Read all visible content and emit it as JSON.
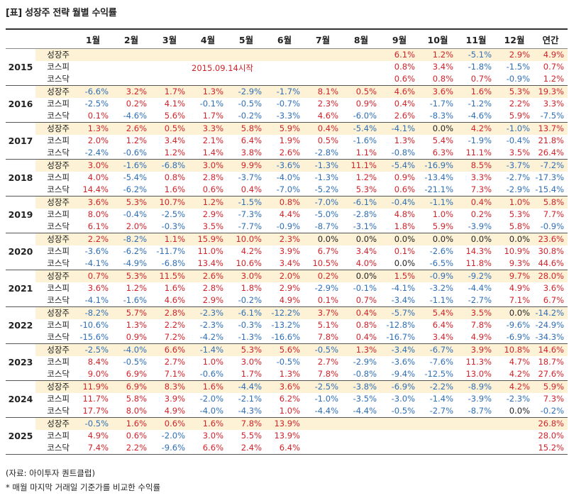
{
  "title": "[표] 성장주 전략 월별 수익률",
  "header": [
    "1월",
    "2월",
    "3월",
    "4월",
    "5월",
    "6월",
    "7월",
    "8월",
    "9월",
    "10월",
    "11월",
    "12월",
    "연간"
  ],
  "annotation": "2015.09.14시작",
  "source": "(자료: 아이투자 퀀트클럽)",
  "footnote": "* 매월 마지막 거래일 기준가를 비교한 수익률",
  "colors": {
    "positive": "#d2232a",
    "negative": "#2f6fb7",
    "growth_row_bg": "#fdf2d6"
  },
  "years": [
    {
      "year": "2015",
      "rows": [
        {
          "name": "성장주",
          "values": [
            "",
            "",
            "",
            "",
            "",
            "",
            "",
            "",
            "6.1%",
            "1.2%",
            "-5.1%",
            "2.9%",
            "4.9%"
          ]
        },
        {
          "name": "코스피",
          "values": [
            "",
            "",
            "",
            "",
            "",
            "",
            "",
            "",
            "0.8%",
            "3.4%",
            "-1.8%",
            "-1.5%",
            "0.7%"
          ]
        },
        {
          "name": "코스닥",
          "values": [
            "",
            "",
            "",
            "",
            "",
            "",
            "",
            "",
            "0.6%",
            "0.8%",
            "0.7%",
            "-0.9%",
            "1.2%"
          ]
        }
      ]
    },
    {
      "year": "2016",
      "rows": [
        {
          "name": "성장주",
          "values": [
            "-6.6%",
            "3.2%",
            "1.7%",
            "1.3%",
            "-2.9%",
            "-1.7%",
            "8.1%",
            "0.5%",
            "4.6%",
            "3.6%",
            "1.6%",
            "5.3%",
            "19.3%"
          ]
        },
        {
          "name": "코스피",
          "values": [
            "-2.5%",
            "0.2%",
            "4.1%",
            "-0.1%",
            "-0.5%",
            "-0.7%",
            "2.3%",
            "0.9%",
            "0.4%",
            "-1.7%",
            "-1.2%",
            "2.2%",
            "3.3%"
          ]
        },
        {
          "name": "코스닥",
          "values": [
            "0.1%",
            "-4.6%",
            "5.6%",
            "1.7%",
            "-0.2%",
            "-3.3%",
            "4.6%",
            "-6.0%",
            "2.6%",
            "-8.3%",
            "-4.6%",
            "5.9%",
            "-7.5%"
          ]
        }
      ]
    },
    {
      "year": "2017",
      "rows": [
        {
          "name": "성장주",
          "values": [
            "1.3%",
            "2.6%",
            "0.5%",
            "3.3%",
            "5.8%",
            "5.9%",
            "0.4%",
            "-5.4%",
            "-4.1%",
            "0.0%",
            "4.2%",
            "-1.0%",
            "13.7%"
          ]
        },
        {
          "name": "코스피",
          "values": [
            "2.0%",
            "1.2%",
            "3.4%",
            "2.1%",
            "6.4%",
            "1.9%",
            "0.5%",
            "-1.6%",
            "1.3%",
            "5.4%",
            "-1.9%",
            "-0.4%",
            "21.8%"
          ]
        },
        {
          "name": "코스닥",
          "values": [
            "-2.4%",
            "-0.6%",
            "1.2%",
            "1.4%",
            "3.8%",
            "2.6%",
            "-2.8%",
            "1.1%",
            "-0.8%",
            "6.3%",
            "11.1%",
            "3.5%",
            "26.4%"
          ]
        }
      ]
    },
    {
      "year": "2018",
      "rows": [
        {
          "name": "성장주",
          "values": [
            "3.0%",
            "-1.6%",
            "-6.8%",
            "3.0%",
            "9.9%",
            "-3.6%",
            "-1.3%",
            "11.1%",
            "-5.4%",
            "-16.9%",
            "8.5%",
            "-3.7%",
            "-7.2%"
          ]
        },
        {
          "name": "코스피",
          "values": [
            "4.0%",
            "-5.4%",
            "0.8%",
            "2.8%",
            "-3.7%",
            "-4.0%",
            "-1.3%",
            "1.2%",
            "0.9%",
            "-13.4%",
            "3.3%",
            "-2.7%",
            "-17.3%"
          ]
        },
        {
          "name": "코스닥",
          "values": [
            "14.4%",
            "-6.2%",
            "1.6%",
            "0.6%",
            "0.4%",
            "-7.0%",
            "-5.2%",
            "5.3%",
            "0.6%",
            "-21.1%",
            "7.3%",
            "-2.9%",
            "-15.4%"
          ]
        }
      ]
    },
    {
      "year": "2019",
      "rows": [
        {
          "name": "성장주",
          "values": [
            "3.6%",
            "5.3%",
            "10.7%",
            "1.2%",
            "-1.5%",
            "0.8%",
            "-7.0%",
            "-6.1%",
            "-0.4%",
            "-1.1%",
            "0.4%",
            "1.0%",
            "5.8%"
          ]
        },
        {
          "name": "코스피",
          "values": [
            "8.0%",
            "-0.4%",
            "-2.5%",
            "2.9%",
            "-7.3%",
            "4.4%",
            "-5.0%",
            "-2.8%",
            "4.8%",
            "1.0%",
            "0.2%",
            "5.3%",
            "7.7%"
          ]
        },
        {
          "name": "코스닥",
          "values": [
            "6.1%",
            "2.0%",
            "-0.3%",
            "3.5%",
            "-7.7%",
            "-0.9%",
            "-8.7%",
            "-3.1%",
            "1.8%",
            "5.9%",
            "-3.9%",
            "5.8%",
            "-0.9%"
          ]
        }
      ]
    },
    {
      "year": "2020",
      "rows": [
        {
          "name": "성장주",
          "values": [
            "2.2%",
            "-8.2%",
            "1.1%",
            "15.9%",
            "10.0%",
            "2.3%",
            "0.0%",
            "0.0%",
            "0.0%",
            "0.0%",
            "0.0%",
            "0.0%",
            "23.6%"
          ]
        },
        {
          "name": "코스피",
          "values": [
            "-3.6%",
            "-6.2%",
            "-11.7%",
            "11.0%",
            "4.2%",
            "3.9%",
            "6.7%",
            "3.4%",
            "0.1%",
            "-2.6%",
            "14.3%",
            "10.9%",
            "30.8%"
          ]
        },
        {
          "name": "코스닥",
          "values": [
            "-4.1%",
            "-4.9%",
            "-6.8%",
            "13.4%",
            "10.6%",
            "3.4%",
            "10.5%",
            "4.0%",
            "0.0%",
            "-6.5%",
            "11.8%",
            "9.3%",
            "44.6%"
          ]
        }
      ]
    },
    {
      "year": "2021",
      "rows": [
        {
          "name": "성장주",
          "values": [
            "0.7%",
            "5.3%",
            "11.5%",
            "2.6%",
            "3.0%",
            "2.0%",
            "0.2%",
            "0.0%",
            "1.5%",
            "-0.9%",
            "-9.2%",
            "9.7%",
            "28.0%"
          ]
        },
        {
          "name": "코스피",
          "values": [
            "3.6%",
            "1.2%",
            "1.6%",
            "2.8%",
            "1.8%",
            "2.9%",
            "-2.9%",
            "-0.1%",
            "-4.1%",
            "-3.2%",
            "-4.4%",
            "4.9%",
            "3.6%"
          ]
        },
        {
          "name": "코스닥",
          "values": [
            "-4.1%",
            "-1.6%",
            "4.6%",
            "2.9%",
            "-0.2%",
            "4.9%",
            "0.1%",
            "0.7%",
            "-3.4%",
            "-1.1%",
            "-2.7%",
            "7.1%",
            "6.7%"
          ]
        }
      ]
    },
    {
      "year": "2022",
      "rows": [
        {
          "name": "성장주",
          "values": [
            "-8.2%",
            "5.7%",
            "2.8%",
            "-2.3%",
            "-6.1%",
            "-12.2%",
            "3.7%",
            "0.4%",
            "-5.7%",
            "5.4%",
            "3.5%",
            "0.0%",
            "-14.2%"
          ]
        },
        {
          "name": "코스피",
          "values": [
            "-10.6%",
            "1.3%",
            "2.2%",
            "-2.3%",
            "-0.3%",
            "-13.2%",
            "5.1%",
            "0.8%",
            "-12.8%",
            "6.4%",
            "7.8%",
            "-9.6%",
            "-24.9%"
          ]
        },
        {
          "name": "코스닥",
          "values": [
            "-15.6%",
            "0.9%",
            "7.2%",
            "-4.2%",
            "-1.3%",
            "-16.6%",
            "7.8%",
            "0.4%",
            "-16.7%",
            "3.4%",
            "4.9%",
            "-6.9%",
            "-34.3%"
          ]
        }
      ]
    },
    {
      "year": "2023",
      "rows": [
        {
          "name": "성장주",
          "values": [
            "-2.5%",
            "-4.0%",
            "6.6%",
            "-1.4%",
            "5.3%",
            "5.6%",
            "-0.5%",
            "1.3%",
            "-3.4%",
            "-6.7%",
            "3.9%",
            "10.8%",
            "14.6%"
          ]
        },
        {
          "name": "코스피",
          "values": [
            "8.4%",
            "-0.5%",
            "2.7%",
            "1.0%",
            "3.0%",
            "-0.5%",
            "2.7%",
            "-2.9%",
            "-3.6%",
            "-7.6%",
            "11.3%",
            "4.7%",
            "18.7%"
          ]
        },
        {
          "name": "코스닥",
          "values": [
            "9.0%",
            "6.9%",
            "7.1%",
            "-0.6%",
            "1.7%",
            "1.3%",
            "7.8%",
            "-0.8%",
            "-9.4%",
            "-12.5%",
            "13.0%",
            "4.2%",
            "27.6%"
          ]
        }
      ]
    },
    {
      "year": "2024",
      "rows": [
        {
          "name": "성장주",
          "values": [
            "11.9%",
            "6.9%",
            "8.3%",
            "1.6%",
            "-4.4%",
            "3.6%",
            "-2.5%",
            "-3.8%",
            "-6.9%",
            "-2.2%",
            "-8.9%",
            "4.2%",
            "5.9%"
          ]
        },
        {
          "name": "코스피",
          "values": [
            "11.7%",
            "5.8%",
            "3.9%",
            "-2.0%",
            "-2.1%",
            "6.2%",
            "-1.0%",
            "-3.5%",
            "-3.0%",
            "-1.4%",
            "-3.9%",
            "-2.3%",
            "7.3%"
          ]
        },
        {
          "name": "코스닥",
          "values": [
            "17.7%",
            "8.0%",
            "4.9%",
            "-4.0%",
            "-4.3%",
            "1.0%",
            "-4.4%",
            "-4.4%",
            "-0.5%",
            "-2.7%",
            "-8.7%",
            "0.0%",
            "-0.2%"
          ]
        }
      ]
    },
    {
      "year": "2025",
      "rows": [
        {
          "name": "성장주",
          "values": [
            "-0.5%",
            "1.6%",
            "0.6%",
            "1.6%",
            "7.8%",
            "13.9%",
            "",
            "",
            "",
            "",
            "",
            "",
            "26.8%"
          ]
        },
        {
          "name": "코스피",
          "values": [
            "4.9%",
            "0.6%",
            "-2.0%",
            "3.0%",
            "5.5%",
            "13.9%",
            "",
            "",
            "",
            "",
            "",
            "",
            "28.0%"
          ]
        },
        {
          "name": "코스닥",
          "values": [
            "7.4%",
            "2.2%",
            "-9.6%",
            "6.6%",
            "2.4%",
            "6.4%",
            "",
            "",
            "",
            "",
            "",
            "",
            "15.2%"
          ]
        }
      ]
    }
  ]
}
